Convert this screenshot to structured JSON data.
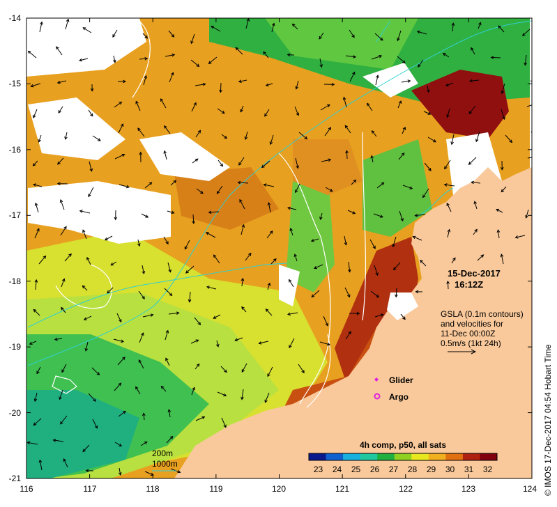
{
  "map": {
    "lon_range": [
      116,
      124
    ],
    "lat_range": [
      -21,
      -14
    ],
    "lon_ticks": [
      "116",
      "117",
      "118",
      "119",
      "120",
      "121",
      "122",
      "123",
      "124"
    ],
    "lat_ticks": [
      "-14",
      "-15",
      "-16",
      "-17",
      "-18",
      "-19",
      "-20",
      "-21"
    ],
    "land_color": "#f9c99b",
    "no_data_color": "#ffffff"
  },
  "annotations": {
    "date": "15-Dec-2017",
    "time": "16:12Z",
    "gsla_line1": "GSLA (0.1m contours)",
    "gsla_line2": "and velocities for",
    "gsla_line3": "11-Dec 00:00Z",
    "gsla_line4": "0.5m/s (1kt 24h)"
  },
  "legend": {
    "glider": "Glider",
    "argo": "Argo",
    "glider_color": "#e020e0",
    "argo_color": "#e020e0"
  },
  "bathymetry": {
    "label_200": "200m",
    "label_1000": "1000m",
    "color": "#30d0d0"
  },
  "colorbar": {
    "title": "4h comp, p50, all sats",
    "ticks": [
      "23",
      "24",
      "25",
      "26",
      "27",
      "28",
      "29",
      "30",
      "31",
      "32"
    ],
    "colors": [
      "#0a1a8c",
      "#1060d0",
      "#18b0e0",
      "#20c8a0",
      "#20b040",
      "#90d020",
      "#e8e820",
      "#f0b020",
      "#e07010",
      "#b02010",
      "#800010"
    ]
  },
  "credit": "© IMOS 17-Dec-2017 04:54 Hobart Time"
}
